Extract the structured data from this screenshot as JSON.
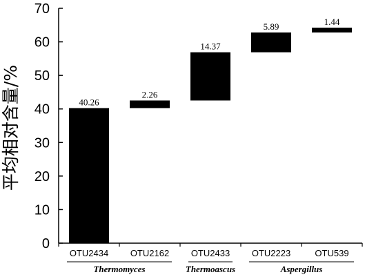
{
  "chart_data": {
    "type": "bar",
    "subtype": "waterfall",
    "title": "",
    "ylabel": "平均相对含量/%",
    "xlabel": "",
    "ylim": [
      0,
      70
    ],
    "yticks": [
      0,
      10,
      20,
      30,
      40,
      50,
      60,
      70
    ],
    "grid": false,
    "categories": [
      "OTU2434",
      "OTU2162",
      "OTU2433",
      "OTU2223",
      "OTU539"
    ],
    "values": [
      40.26,
      2.26,
      14.37,
      5.89,
      1.44
    ],
    "value_labels": [
      "40.26",
      "2.26",
      "14.37",
      "5.89",
      "1.44"
    ],
    "groups": [
      {
        "name": "Thermomyces",
        "categories": [
          "OTU2434",
          "OTU2162"
        ]
      },
      {
        "name": "Thermoascus",
        "categories": [
          "OTU2433"
        ]
      },
      {
        "name": "Aspergillus",
        "categories": [
          "OTU2223",
          "OTU539"
        ]
      }
    ],
    "bar_color": "#000000"
  }
}
